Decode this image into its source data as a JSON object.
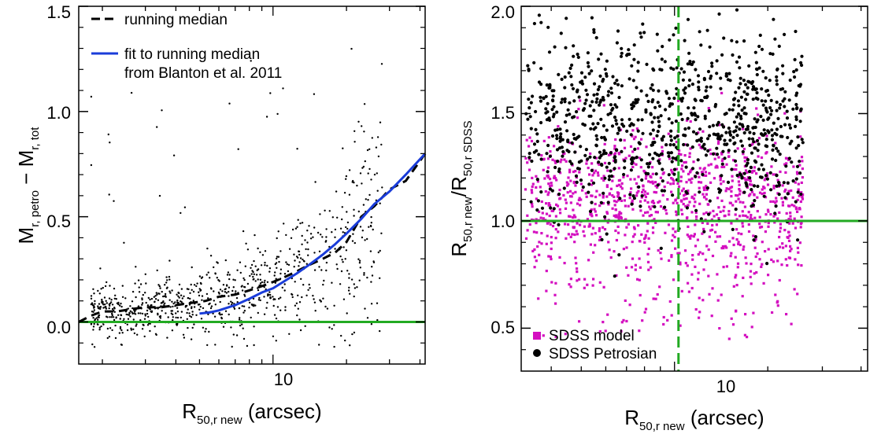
{
  "colors": {
    "reference_green": "#22aa22",
    "fit_blue": "#1a3cd9",
    "model_magenta": "#d40fc0",
    "petro_black": "#000000"
  },
  "chart_data": [
    {
      "type": "scatter",
      "panel": "left",
      "xscale": "log",
      "xlim": [
        1.6,
        42
      ],
      "ylim": [
        -0.2,
        1.5
      ],
      "xticks": [
        10
      ],
      "xtick_labels": [
        "10"
      ],
      "yticks": [
        0.0,
        0.5,
        1.0,
        1.5
      ],
      "ytick_labels": [
        "0.0",
        "0.5",
        "1.0",
        "1.5"
      ],
      "xlabel": {
        "main": "R",
        "sub": "50,r new",
        "tail": " (arcsec)"
      },
      "ylabel": {
        "a": "M",
        "a_sub": "r, petro",
        "mid": " − ",
        "b": "M",
        "b_sub": "r, tot"
      },
      "legend": {
        "position": "top-left",
        "entries": [
          {
            "label": "running median",
            "style": "dashed",
            "color": "#000000"
          },
          {
            "label": "fit to running median",
            "style": "solid",
            "color": "#1a3cd9"
          },
          {
            "label": "from Blanton et al. 2011",
            "style": "none"
          }
        ]
      },
      "running_median": {
        "x": [
          1.6,
          1.8,
          2.0,
          2.3,
          2.6,
          3.0,
          3.5,
          4.0,
          4.6,
          5.3,
          6.0,
          7.0,
          8.0,
          9.0,
          10.0,
          11.0,
          12.5,
          14.0,
          16.0,
          18.0,
          20.0,
          23.0,
          26.0,
          30.0,
          35.0,
          42.0
        ],
        "y": [
          0.0,
          0.03,
          0.05,
          0.05,
          0.06,
          0.07,
          0.07,
          0.08,
          0.09,
          0.1,
          0.12,
          0.13,
          0.15,
          0.17,
          0.19,
          0.21,
          0.24,
          0.27,
          0.3,
          0.33,
          0.38,
          0.5,
          0.55,
          0.63,
          0.67,
          0.8
        ]
      },
      "fit": {
        "x": [
          5.0,
          5.5,
          6.0,
          7.0,
          8.0,
          9.0,
          10.0,
          11.0,
          12.5,
          14.0,
          16.0,
          18.0,
          20.0,
          23.0,
          26.0,
          30.0,
          35.0,
          42.0
        ],
        "y": [
          0.04,
          0.045,
          0.055,
          0.08,
          0.11,
          0.14,
          0.16,
          0.19,
          0.23,
          0.27,
          0.32,
          0.37,
          0.42,
          0.49,
          0.56,
          0.62,
          0.7,
          0.8
        ]
      },
      "reference_line": {
        "y": 0.0
      },
      "points_description_count": 900
    },
    {
      "type": "scatter",
      "panel": "right",
      "xscale": "log",
      "xlim": [
        3.2,
        42
      ],
      "ylim": [
        0.3,
        2.0
      ],
      "xticks": [
        10
      ],
      "xtick_labels": [
        "10"
      ],
      "yticks": [
        0.5,
        1.0,
        1.5,
        2.0
      ],
      "ytick_labels": [
        "0.5",
        "1.0",
        "1.5",
        "2.0"
      ],
      "xlabel": {
        "main": "R",
        "sub": "50,r new",
        "tail": " (arcsec)"
      },
      "ylabel": {
        "a": "R",
        "a_sub": "50,r new",
        "mid": "/",
        "b": "R",
        "b_sub": "50,r SDSS"
      },
      "legend": {
        "position": "bottom-left",
        "entries": [
          {
            "label": "SDSS model",
            "marker": "square",
            "color": "#d40fc0"
          },
          {
            "label": "SDSS Petrosian",
            "marker": "circle",
            "color": "#000000"
          }
        ]
      },
      "reference_lines": {
        "y": 1.0,
        "x": 10.3
      },
      "series": [
        {
          "name": "SDSS model",
          "center_ratio": 1.1,
          "count": 1100
        },
        {
          "name": "SDSS Petrosian",
          "center_ratio": 1.45,
          "count": 900
        }
      ]
    }
  ]
}
